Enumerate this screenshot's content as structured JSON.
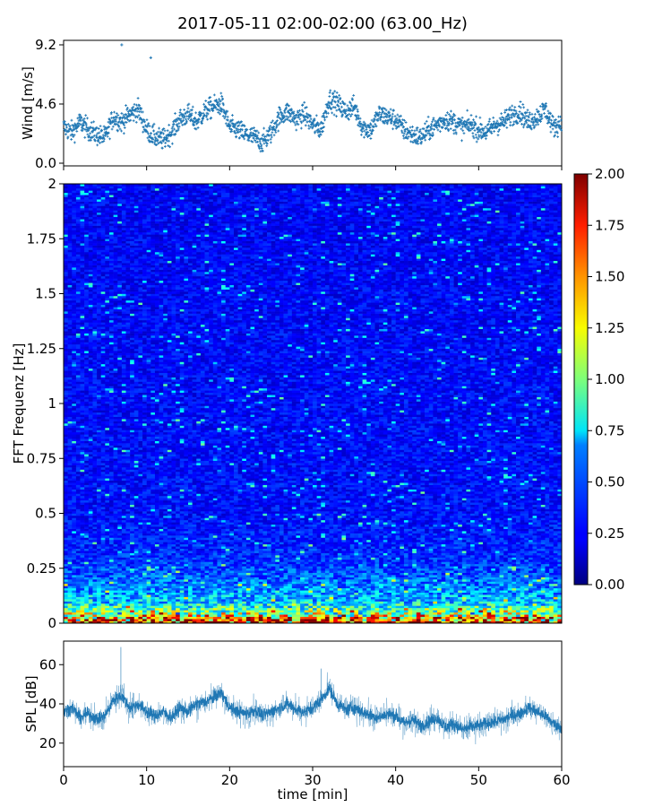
{
  "title": "2017-05-11 02:00-02:00 (63.00_Hz)",
  "chart_data": [
    {
      "type": "scatter",
      "panel": "wind",
      "ylabel": "Wind [m/s]",
      "xlim": [
        0,
        60
      ],
      "ylim": [
        0,
        9.2
      ],
      "yticks": [
        0.0,
        4.6,
        9.2
      ],
      "ytick_labels": [
        "0.0",
        "4.6",
        "9.2"
      ],
      "xticks": [
        0,
        10,
        20,
        30,
        40,
        50,
        60
      ],
      "color": "#1f77b4",
      "x": [
        0,
        1,
        2,
        3,
        4,
        5,
        6,
        7,
        8,
        9,
        10,
        11,
        12,
        13,
        14,
        15,
        16,
        17,
        18,
        19,
        20,
        21,
        22,
        23,
        24,
        25,
        26,
        27,
        28,
        29,
        30,
        31,
        32,
        33,
        34,
        35,
        36,
        37,
        38,
        39,
        40,
        41,
        42,
        43,
        44,
        45,
        46,
        47,
        48,
        49,
        50,
        51,
        52,
        53,
        54,
        55,
        56,
        57,
        58,
        59,
        60
      ],
      "y": [
        2.8,
        2.4,
        3.2,
        2.6,
        2.2,
        2.0,
        3.6,
        3.2,
        3.8,
        4.2,
        2.6,
        2.0,
        1.8,
        2.4,
        3.4,
        3.8,
        3.2,
        4.0,
        4.4,
        4.6,
        2.8,
        2.6,
        2.2,
        2.0,
        1.6,
        2.4,
        3.6,
        4.0,
        3.4,
        3.8,
        3.0,
        2.6,
        5.0,
        4.6,
        4.0,
        4.4,
        2.8,
        2.6,
        3.8,
        3.6,
        3.4,
        2.6,
        2.2,
        2.0,
        2.6,
        3.0,
        3.4,
        3.2,
        2.8,
        3.0,
        2.6,
        2.4,
        3.0,
        3.2,
        3.8,
        4.0,
        3.2,
        3.6,
        4.2,
        2.8,
        3.2
      ],
      "outliers": {
        "x": [
          7,
          10.5
        ],
        "y": [
          9.2,
          8.2
        ]
      }
    },
    {
      "type": "heatmap",
      "panel": "spectrogram",
      "ylabel": "FFT Frequenz [Hz]",
      "xlim": [
        0,
        60
      ],
      "ylim": [
        0,
        2
      ],
      "yticks": [
        0,
        0.25,
        0.5,
        0.75,
        1,
        1.25,
        1.5,
        1.75,
        2
      ],
      "ytick_labels": [
        "0",
        "0.25",
        "0.5",
        "0.75",
        "1",
        "1.25",
        "1.5",
        "1.75",
        "2"
      ],
      "colormap": "jet",
      "color_range": [
        0,
        2.0
      ],
      "colorbar_ticks": [
        "0.00",
        "0.25",
        "0.50",
        "0.75",
        "1.00",
        "1.25",
        "1.50",
        "1.75",
        "2.00"
      ],
      "n_time": 120,
      "n_freq": 200,
      "profile": {
        "description_freq": [
          0,
          0.02,
          0.05,
          0.1,
          0.2,
          0.3,
          0.5,
          2.0
        ],
        "mean_level": [
          1.9,
          1.6,
          1.0,
          0.65,
          0.45,
          0.33,
          0.27,
          0.24
        ]
      }
    },
    {
      "type": "line",
      "panel": "spl",
      "ylabel": "SPL [dB]",
      "xlabel": "time [min]",
      "xlim": [
        0,
        60
      ],
      "ylim": [
        8,
        72
      ],
      "yticks": [
        20,
        40,
        60
      ],
      "ytick_labels": [
        "20",
        "40",
        "60"
      ],
      "xticks": [
        0,
        10,
        20,
        30,
        40,
        50,
        60
      ],
      "xtick_labels": [
        "0",
        "10",
        "20",
        "30",
        "40",
        "50",
        "60"
      ],
      "color": "#1f77b4",
      "x": [
        0,
        1,
        2,
        3,
        4,
        5,
        6,
        7,
        8,
        9,
        10,
        11,
        12,
        13,
        14,
        15,
        16,
        17,
        18,
        19,
        20,
        21,
        22,
        23,
        24,
        25,
        26,
        27,
        28,
        29,
        30,
        31,
        32,
        33,
        34,
        35,
        36,
        37,
        38,
        39,
        40,
        41,
        42,
        43,
        44,
        45,
        46,
        47,
        48,
        49,
        50,
        51,
        52,
        53,
        54,
        55,
        56,
        57,
        58,
        59,
        60
      ],
      "y": [
        36,
        38,
        33,
        35,
        32,
        34,
        42,
        44,
        38,
        40,
        36,
        34,
        36,
        33,
        38,
        36,
        40,
        41,
        43,
        46,
        38,
        36,
        35,
        37,
        34,
        36,
        38,
        40,
        37,
        36,
        38,
        42,
        48,
        40,
        37,
        38,
        36,
        34,
        33,
        35,
        34,
        30,
        32,
        29,
        31,
        33,
        28,
        30,
        27,
        28,
        29,
        30,
        31,
        32,
        34,
        35,
        38,
        36,
        34,
        30,
        28
      ],
      "spikes": {
        "x": [
          6.9,
          31
        ],
        "y": [
          69,
          58
        ]
      }
    }
  ]
}
